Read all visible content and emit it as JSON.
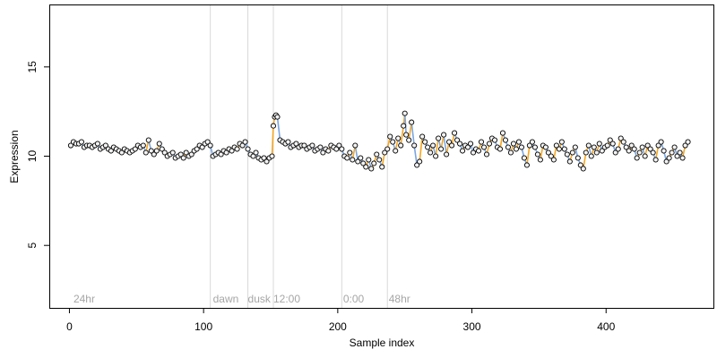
{
  "chart_data": {
    "type": "scatter",
    "title": "",
    "xlabel": "Sample index",
    "ylabel": "Expression",
    "xlim": [
      -15,
      480
    ],
    "ylim": [
      1.5,
      18.5
    ],
    "x_ticks": [
      0,
      100,
      200,
      300,
      400
    ],
    "y_ticks": [
      5,
      10,
      15
    ],
    "grid": false,
    "legend": "none",
    "colors": {
      "up": "#f5a623",
      "down": "#7aa6e0",
      "point_fill": "#f2f2f2",
      "point_stroke": "#000000",
      "divider": "#d9d9d9",
      "phase_label": "#a6a6a6"
    },
    "phase_boundaries": [
      105,
      133,
      152,
      203,
      237
    ],
    "phase_labels": [
      {
        "x": 3,
        "text": "24hr"
      },
      {
        "x": 107,
        "text": "dawn"
      },
      {
        "x": 133,
        "text": "dusk"
      },
      {
        "x": 152,
        "text": "12:00"
      },
      {
        "x": 204,
        "text": "0:00"
      },
      {
        "x": 238,
        "text": "48hr"
      }
    ],
    "series": [
      {
        "points": [
          [
            1,
            10.6
          ],
          [
            3,
            10.8
          ],
          [
            5,
            10.7
          ],
          [
            7,
            10.7
          ],
          [
            9,
            10.8
          ],
          [
            11,
            10.5
          ],
          [
            13,
            10.6
          ],
          [
            15,
            10.6
          ],
          [
            17,
            10.5
          ],
          [
            19,
            10.6
          ],
          [
            21,
            10.7
          ],
          [
            23,
            10.4
          ],
          [
            25,
            10.5
          ],
          [
            27,
            10.6
          ],
          [
            29,
            10.4
          ],
          [
            31,
            10.3
          ],
          [
            33,
            10.5
          ],
          [
            35,
            10.4
          ],
          [
            37,
            10.3
          ],
          [
            39,
            10.2
          ],
          [
            41,
            10.4
          ],
          [
            43,
            10.3
          ],
          [
            45,
            10.2
          ],
          [
            47,
            10.3
          ],
          [
            49,
            10.4
          ],
          [
            51,
            10.6
          ],
          [
            53,
            10.5
          ],
          [
            55,
            10.6
          ],
          [
            57,
            10.2
          ],
          [
            59,
            10.9
          ],
          [
            61,
            10.3
          ],
          [
            63,
            10.1
          ],
          [
            65,
            10.3
          ],
          [
            67,
            10.7
          ],
          [
            69,
            10.4
          ],
          [
            71,
            10.2
          ],
          [
            73,
            10.0
          ],
          [
            75,
            10.1
          ],
          [
            77,
            10.2
          ],
          [
            79,
            9.9
          ],
          [
            81,
            10.0
          ],
          [
            83,
            10.1
          ],
          [
            85,
            9.9
          ],
          [
            87,
            10.2
          ],
          [
            89,
            10.0
          ],
          [
            91,
            10.1
          ],
          [
            93,
            10.3
          ],
          [
            95,
            10.4
          ],
          [
            97,
            10.6
          ],
          [
            99,
            10.5
          ],
          [
            101,
            10.7
          ],
          [
            103,
            10.8
          ],
          [
            105,
            10.6
          ],
          [
            107,
            10.0
          ],
          [
            109,
            10.1
          ],
          [
            111,
            10.2
          ],
          [
            113,
            10.1
          ],
          [
            115,
            10.3
          ],
          [
            117,
            10.2
          ],
          [
            119,
            10.4
          ],
          [
            121,
            10.3
          ],
          [
            123,
            10.5
          ],
          [
            125,
            10.4
          ],
          [
            127,
            10.7
          ],
          [
            129,
            10.6
          ],
          [
            131,
            10.8
          ],
          [
            133,
            10.4
          ],
          [
            135,
            10.1
          ],
          [
            137,
            10.0
          ],
          [
            139,
            10.2
          ],
          [
            141,
            9.9
          ],
          [
            143,
            9.8
          ],
          [
            145,
            9.9
          ],
          [
            147,
            9.7
          ],
          [
            149,
            9.9
          ],
          [
            151,
            10.0
          ],
          [
            152,
            11.7
          ],
          [
            153,
            12.2
          ],
          [
            154,
            12.3
          ],
          [
            155,
            12.2
          ],
          [
            157,
            10.9
          ],
          [
            159,
            10.8
          ],
          [
            161,
            10.7
          ],
          [
            163,
            10.8
          ],
          [
            165,
            10.5
          ],
          [
            167,
            10.6
          ],
          [
            169,
            10.7
          ],
          [
            171,
            10.5
          ],
          [
            173,
            10.6
          ],
          [
            175,
            10.6
          ],
          [
            177,
            10.4
          ],
          [
            179,
            10.5
          ],
          [
            181,
            10.6
          ],
          [
            183,
            10.3
          ],
          [
            185,
            10.4
          ],
          [
            187,
            10.5
          ],
          [
            189,
            10.2
          ],
          [
            191,
            10.4
          ],
          [
            193,
            10.3
          ],
          [
            195,
            10.6
          ],
          [
            197,
            10.5
          ],
          [
            199,
            10.4
          ],
          [
            201,
            10.6
          ],
          [
            203,
            10.4
          ],
          [
            205,
            10.0
          ],
          [
            207,
            9.9
          ],
          [
            209,
            10.2
          ],
          [
            211,
            9.8
          ],
          [
            213,
            10.6
          ],
          [
            215,
            9.7
          ],
          [
            217,
            9.9
          ],
          [
            219,
            9.6
          ],
          [
            221,
            9.4
          ],
          [
            223,
            9.8
          ],
          [
            225,
            9.3
          ],
          [
            227,
            9.6
          ],
          [
            229,
            10.1
          ],
          [
            231,
            9.8
          ],
          [
            233,
            9.4
          ],
          [
            235,
            10.2
          ],
          [
            237,
            10.4
          ],
          [
            239,
            11.1
          ],
          [
            241,
            10.8
          ],
          [
            243,
            10.3
          ],
          [
            245,
            11.0
          ],
          [
            247,
            10.6
          ],
          [
            249,
            11.7
          ],
          [
            250,
            12.4
          ],
          [
            251,
            11.2
          ],
          [
            253,
            10.9
          ],
          [
            255,
            11.9
          ],
          [
            257,
            10.6
          ],
          [
            259,
            9.5
          ],
          [
            261,
            9.7
          ],
          [
            263,
            11.1
          ],
          [
            265,
            10.8
          ],
          [
            267,
            10.5
          ],
          [
            269,
            10.2
          ],
          [
            271,
            10.6
          ],
          [
            273,
            10.0
          ],
          [
            275,
            11.0
          ],
          [
            277,
            10.4
          ],
          [
            279,
            11.2
          ],
          [
            281,
            10.1
          ],
          [
            283,
            10.8
          ],
          [
            285,
            10.6
          ],
          [
            287,
            11.3
          ],
          [
            289,
            10.9
          ],
          [
            291,
            10.7
          ],
          [
            293,
            10.3
          ],
          [
            295,
            10.6
          ],
          [
            297,
            10.5
          ],
          [
            299,
            10.7
          ],
          [
            301,
            10.2
          ],
          [
            303,
            10.4
          ],
          [
            305,
            10.3
          ],
          [
            307,
            10.8
          ],
          [
            309,
            10.5
          ],
          [
            311,
            10.1
          ],
          [
            313,
            10.7
          ],
          [
            315,
            11.0
          ],
          [
            317,
            10.9
          ],
          [
            319,
            10.5
          ],
          [
            321,
            10.4
          ],
          [
            323,
            11.3
          ],
          [
            325,
            10.9
          ],
          [
            327,
            10.5
          ],
          [
            329,
            10.2
          ],
          [
            331,
            10.7
          ],
          [
            333,
            10.4
          ],
          [
            335,
            10.8
          ],
          [
            337,
            10.5
          ],
          [
            339,
            9.9
          ],
          [
            341,
            9.5
          ],
          [
            343,
            10.6
          ],
          [
            345,
            10.8
          ],
          [
            347,
            10.5
          ],
          [
            349,
            10.1
          ],
          [
            351,
            9.8
          ],
          [
            353,
            10.6
          ],
          [
            355,
            10.5
          ],
          [
            357,
            10.2
          ],
          [
            359,
            10.0
          ],
          [
            361,
            9.8
          ],
          [
            363,
            10.6
          ],
          [
            365,
            10.4
          ],
          [
            367,
            10.8
          ],
          [
            369,
            10.4
          ],
          [
            371,
            10.1
          ],
          [
            373,
            9.7
          ],
          [
            375,
            10.2
          ],
          [
            377,
            10.5
          ],
          [
            379,
            9.9
          ],
          [
            381,
            9.5
          ],
          [
            383,
            9.3
          ],
          [
            385,
            10.2
          ],
          [
            387,
            10.6
          ],
          [
            389,
            10.0
          ],
          [
            391,
            10.5
          ],
          [
            393,
            10.2
          ],
          [
            395,
            10.7
          ],
          [
            397,
            10.3
          ],
          [
            399,
            10.5
          ],
          [
            401,
            10.6
          ],
          [
            403,
            10.9
          ],
          [
            405,
            10.7
          ],
          [
            407,
            10.2
          ],
          [
            409,
            10.4
          ],
          [
            411,
            11.0
          ],
          [
            413,
            10.8
          ],
          [
            415,
            10.5
          ],
          [
            417,
            10.3
          ],
          [
            419,
            10.6
          ],
          [
            421,
            10.4
          ],
          [
            423,
            9.9
          ],
          [
            425,
            10.2
          ],
          [
            427,
            10.5
          ],
          [
            429,
            10.0
          ],
          [
            431,
            10.6
          ],
          [
            433,
            10.4
          ],
          [
            435,
            10.2
          ],
          [
            437,
            9.8
          ],
          [
            439,
            10.6
          ],
          [
            441,
            10.8
          ],
          [
            443,
            10.3
          ],
          [
            445,
            9.7
          ],
          [
            447,
            9.9
          ],
          [
            449,
            10.2
          ],
          [
            451,
            10.5
          ],
          [
            453,
            10.0
          ],
          [
            455,
            10.2
          ],
          [
            457,
            9.9
          ],
          [
            459,
            10.6
          ],
          [
            461,
            10.8
          ]
        ]
      }
    ]
  }
}
